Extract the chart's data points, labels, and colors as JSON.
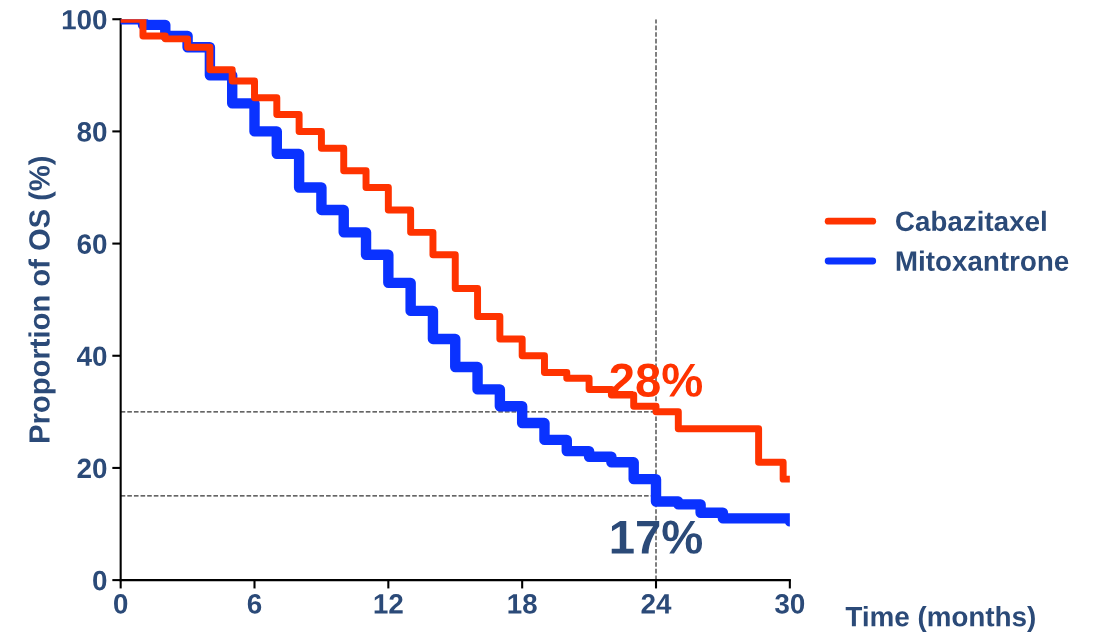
{
  "chart_data": {
    "type": "step",
    "xlabel": "Time (months)",
    "ylabel": "Proportion of OS (%)",
    "xlim": [
      0,
      30
    ],
    "ylim": [
      0,
      100
    ],
    "xticks": [
      0,
      6,
      12,
      18,
      24,
      30
    ],
    "yticks": [
      0,
      20,
      40,
      60,
      80,
      100
    ],
    "grid": false,
    "legend": "right",
    "line_style": "solid",
    "marker": "none",
    "series": [
      {
        "name": "Cabazitaxel",
        "color": "#ff3300",
        "x": [
          0,
          1,
          2,
          3,
          4,
          5,
          6,
          7,
          8,
          9,
          10,
          11,
          12,
          13,
          14,
          15,
          16,
          17,
          18,
          19,
          20,
          21,
          22,
          23,
          24,
          25,
          28.5,
          28.6,
          29.6,
          29.7,
          30
        ],
        "values": [
          100,
          97,
          96.5,
          95,
          91,
          89,
          86,
          83,
          80,
          77,
          73,
          70,
          66,
          62,
          58,
          52,
          47,
          43,
          40,
          37,
          36,
          34,
          33,
          31,
          30,
          27,
          27,
          21,
          21,
          18,
          18
        ]
      },
      {
        "name": "Mitoxantrone",
        "color": "#0a32ff",
        "x": [
          0,
          1,
          2,
          3,
          4,
          5,
          6,
          7,
          8,
          9,
          10,
          11,
          12,
          13,
          14,
          15,
          16,
          17,
          18,
          19,
          20,
          21,
          22,
          23,
          24,
          25,
          26,
          27,
          28,
          30
        ],
        "values": [
          100,
          99,
          97,
          95,
          90,
          85,
          80,
          76,
          70,
          66,
          62,
          58,
          53,
          48,
          43,
          38,
          34,
          31,
          28,
          25,
          23,
          22,
          21,
          18,
          14,
          13.5,
          12,
          11,
          11,
          10.5
        ]
      }
    ],
    "ref_lines": [
      {
        "axis": "x",
        "value": 24,
        "color": "#333333",
        "line_style": "dashed"
      },
      {
        "axis": "y",
        "value": 30,
        "color": "#333333",
        "line_style": "dashed"
      },
      {
        "axis": "y",
        "value": 15,
        "color": "#333333",
        "line_style": "dashed"
      }
    ],
    "annotations": [
      {
        "text": "28%",
        "x": 24,
        "y": 31
      },
      {
        "text": "17%",
        "x": 24,
        "y": 3
      }
    ]
  }
}
